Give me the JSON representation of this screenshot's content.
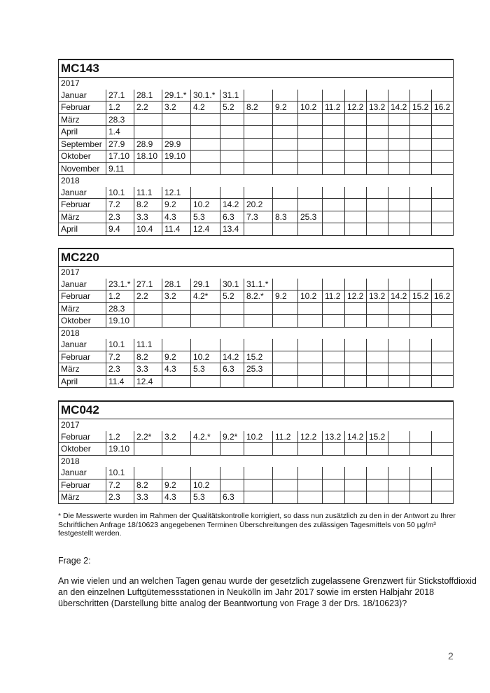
{
  "tables": [
    {
      "station": "MC143",
      "rows": [
        {
          "year": "2017"
        },
        {
          "label": "Januar",
          "cells": [
            "27.1",
            "28.1",
            "29.1.*",
            "30.1.*",
            "31.1"
          ]
        },
        {
          "label": "Februar",
          "cells": [
            "1.2",
            "2.2",
            "3.2",
            "4.2",
            "5.2",
            "8.2",
            "9.2",
            "10.2",
            "11.2",
            "12.2",
            "13.2",
            "14.2",
            "15.2",
            "16.2"
          ]
        },
        {
          "label": "März",
          "cells": [
            "28.3"
          ]
        },
        {
          "label": "April",
          "cells": [
            "1.4"
          ]
        },
        {
          "label": "September",
          "cells": [
            "27.9",
            "28.9",
            "29.9"
          ]
        },
        {
          "label": "Oktober",
          "cells": [
            "17.10",
            "18.10",
            "19.10"
          ]
        },
        {
          "label": "November",
          "cells": [
            "9.11"
          ]
        },
        {
          "year": "2018"
        },
        {
          "label": "Januar",
          "cells": [
            "10.1",
            "11.1",
            "12.1"
          ]
        },
        {
          "label": "Februar",
          "cells": [
            "7.2",
            "8.2",
            "9.2",
            "10.2",
            "14.2",
            "20.2"
          ]
        },
        {
          "label": "März",
          "cells": [
            "2.3",
            "3.3",
            "4.3",
            "5.3",
            "6.3",
            "7.3",
            "8.3",
            "25.3"
          ]
        },
        {
          "label": "April",
          "cells": [
            "9.4",
            "10.4",
            "11.4",
            "12.4",
            "13.4"
          ]
        }
      ]
    },
    {
      "station": "MC220",
      "rows": [
        {
          "year": "2017"
        },
        {
          "label": "Januar",
          "cells": [
            "23.1.*",
            "27.1",
            "28.1",
            "29.1",
            "30.1",
            "31.1.*"
          ]
        },
        {
          "label": "Februar",
          "cells": [
            "1.2",
            "2.2",
            "3.2",
            "4.2*",
            "5.2",
            "8.2.*",
            "9.2",
            "10.2",
            "11.2",
            "12.2",
            "13.2",
            "14.2",
            "15.2",
            "16.2"
          ]
        },
        {
          "label": "März",
          "cells": [
            "28.3"
          ]
        },
        {
          "label": "Oktober",
          "cells": [
            "19.10"
          ]
        },
        {
          "year": "2018"
        },
        {
          "label": "Januar",
          "cells": [
            "10.1",
            "11.1"
          ]
        },
        {
          "label": "Februar",
          "cells": [
            "7.2",
            "8.2",
            "9.2",
            "10.2",
            "14.2",
            "15.2"
          ]
        },
        {
          "label": "März",
          "cells": [
            "2.3",
            "3.3",
            "4.3",
            "5.3",
            "6.3",
            "25.3"
          ]
        },
        {
          "label": "April",
          "cells": [
            "11.4",
            "12.4"
          ]
        }
      ]
    },
    {
      "station": "MC042",
      "rows": [
        {
          "year": "2017"
        },
        {
          "label": "Februar",
          "cells": [
            "1.2",
            "2.2*",
            "3.2",
            "4.2.*",
            "9.2*",
            "10.2",
            "11.2",
            "12.2",
            "13.2",
            "14.2",
            "15.2"
          ]
        },
        {
          "label": "Oktober",
          "cells": [
            "19.10"
          ]
        },
        {
          "year": "2018"
        },
        {
          "label": "Januar",
          "cells": [
            "10.1"
          ]
        },
        {
          "label": "Februar",
          "cells": [
            "7.2",
            "8.2",
            "9.2",
            "10.2"
          ]
        },
        {
          "label": "März",
          "cells": [
            "2.3",
            "3.3",
            "4.3",
            "5.3",
            "6.3"
          ]
        }
      ]
    }
  ],
  "footnote": "* Die Messwerte wurden im Rahmen der Qualitätskontrolle korrigiert, so dass nun zusätzlich zu den in der Antwort zu Ihrer Schriftlichen Anfrage 18/10623 angegebenen Terminen Überschreitungen des zulässigen Tagesmittels von 50 µg/m³ festgestellt werden.",
  "question_heading": "Frage 2:",
  "question_text": "An wie vielen und an welchen Tagen genau wurde der gesetzlich zugelassene Grenzwert für Stickstoffdioxid an den einzelnen Luftgütemessstationen in Neukölln im Jahr 2017 sowie im ersten Halbjahr 2018 überschritten (Darstellung bitte analog der Beantwortung von Frage 3 der Drs. 18/10623)?",
  "page_number": "2"
}
